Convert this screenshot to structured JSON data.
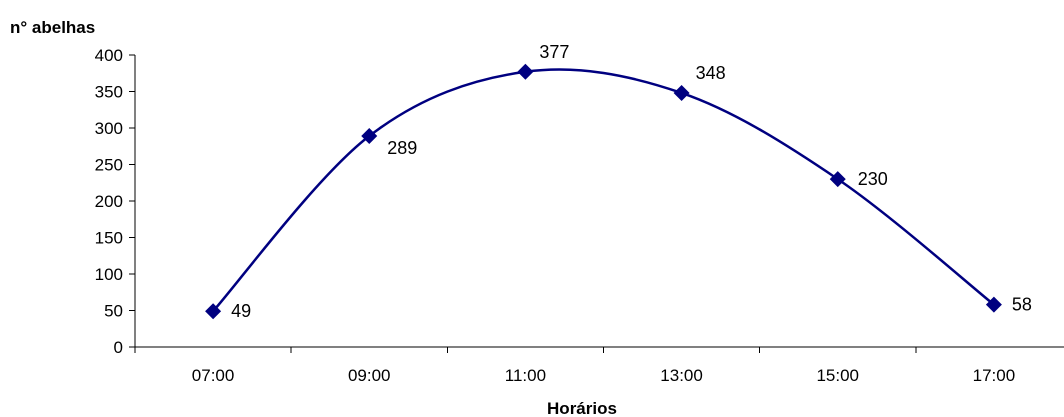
{
  "chart_data": {
    "type": "line",
    "smooth": true,
    "x": [
      "07:00",
      "09:00",
      "11:00",
      "13:00",
      "15:00",
      "17:00"
    ],
    "series": [
      {
        "values": [
          49,
          289,
          377,
          348,
          230,
          58
        ],
        "color": "#000080",
        "marker": "diamond"
      }
    ],
    "data_labels": [
      "49",
      "289",
      "377",
      "348",
      "230",
      "58"
    ],
    "xlabel": "Horários",
    "ylabel": "n° abelhas",
    "ylim": [
      0,
      400
    ],
    "yticks": [
      0,
      50,
      100,
      150,
      200,
      250,
      300,
      350,
      400
    ],
    "grid": false,
    "legend": "none"
  }
}
